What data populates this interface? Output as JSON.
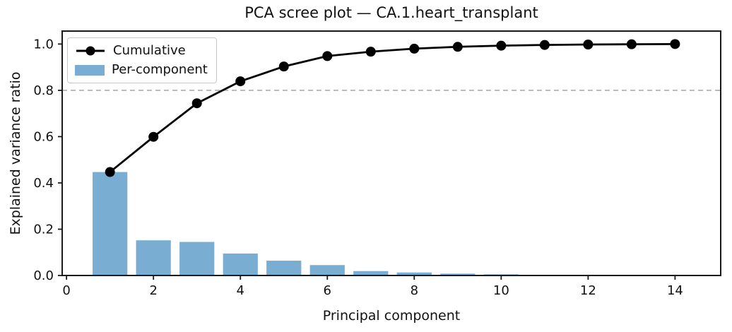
{
  "figure": {
    "background": "#ffffff",
    "text_color": "#111111",
    "axis_color": "#1a1a1a"
  },
  "chart_data": {
    "type": "combo",
    "title": "PCA scree plot — CA.1.heart_transplant",
    "xlabel": "Principal component",
    "ylabel": "Explained variance ratio",
    "x": [
      1,
      2,
      3,
      4,
      5,
      6,
      7,
      8,
      9,
      10,
      11,
      12,
      13,
      14
    ],
    "series": [
      {
        "name": "Cumulative",
        "type": "line",
        "color": "#000000",
        "marker": "circle",
        "values": [
          0.447,
          0.599,
          0.744,
          0.839,
          0.903,
          0.948,
          0.967,
          0.98,
          0.988,
          0.993,
          0.996,
          0.998,
          0.999,
          1.0
        ]
      },
      {
        "name": "Per-component",
        "type": "bar",
        "color": "#79add2",
        "values": [
          0.447,
          0.152,
          0.145,
          0.095,
          0.064,
          0.045,
          0.019,
          0.013,
          0.008,
          0.005,
          0.003,
          0.002,
          0.001,
          0.001
        ]
      }
    ],
    "threshold_line": {
      "y": 0.8,
      "style": "dashed",
      "color": "#a6a6a6"
    },
    "xlim": [
      -0.1,
      15.05
    ],
    "ylim": [
      0,
      1.056
    ],
    "xticks": [
      "0",
      "2",
      "4",
      "6",
      "8",
      "10",
      "12",
      "14"
    ],
    "yticks": [
      "0.0",
      "0.2",
      "0.4",
      "0.6",
      "0.8",
      "1.0"
    ],
    "bar_width": 0.8,
    "grid": false,
    "legend_position": "upper-left"
  }
}
